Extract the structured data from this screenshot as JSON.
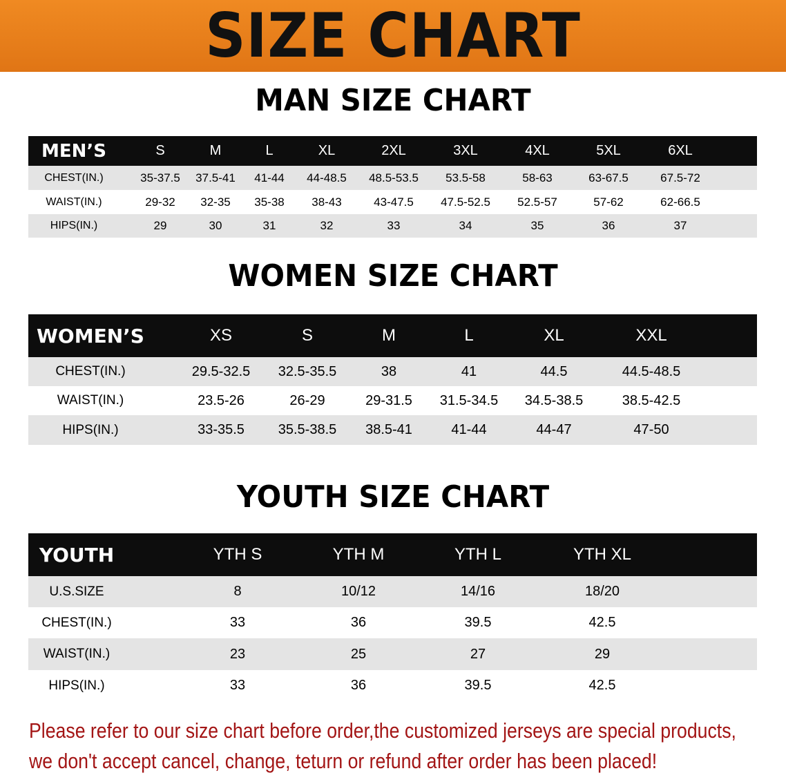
{
  "banner_title": "SIZE CHART",
  "men": {
    "heading": "MAN SIZE CHART",
    "header": [
      "MEN’S",
      "S",
      "M",
      "L",
      "XL",
      "2XL",
      "3XL",
      "4XL",
      "5XL",
      "6XL"
    ],
    "rows": [
      [
        "CHEST(IN.)",
        "35-37.5",
        "37.5-41",
        "41-44",
        "44-48.5",
        "48.5-53.5",
        "53.5-58",
        "58-63",
        "63-67.5",
        "67.5-72"
      ],
      [
        "WAIST(IN.)",
        "29-32",
        "32-35",
        "35-38",
        "38-43",
        "43-47.5",
        "47.5-52.5",
        "52.5-57",
        "57-62",
        "62-66.5"
      ],
      [
        "HIPS(IN.)",
        "29",
        "30",
        "31",
        "32",
        "33",
        "34",
        "35",
        "36",
        "37"
      ]
    ]
  },
  "women": {
    "heading": "WOMEN SIZE CHART",
    "header": [
      "WOMEN’S",
      "XS",
      "S",
      "M",
      "L",
      "XL",
      "XXL"
    ],
    "rows": [
      [
        "CHEST(IN.)",
        "29.5-32.5",
        "32.5-35.5",
        "38",
        "41",
        "44.5",
        "44.5-48.5"
      ],
      [
        "WAIST(IN.)",
        "23.5-26",
        "26-29",
        "29-31.5",
        "31.5-34.5",
        "34.5-38.5",
        "38.5-42.5"
      ],
      [
        "HIPS(IN.)",
        "33-35.5",
        "35.5-38.5",
        "38.5-41",
        "41-44",
        "44-47",
        "47-50"
      ]
    ]
  },
  "youth": {
    "heading": "YOUTH SIZE CHART",
    "header": [
      "YOUTH",
      "YTH S",
      "YTH M",
      "YTH L",
      "YTH XL"
    ],
    "rows": [
      [
        "U.S.SIZE",
        "8",
        "10/12",
        "14/16",
        "18/20"
      ],
      [
        "CHEST(IN.)",
        "33",
        "36",
        "39.5",
        "42.5"
      ],
      [
        "WAIST(IN.)",
        "23",
        "25",
        "27",
        "29"
      ],
      [
        "HIPS(IN.)",
        "33",
        "36",
        "39.5",
        "42.5"
      ]
    ]
  },
  "notice": [
    "Please refer to our size chart before order,the customized jerseys are special products,",
    "we don't accept cancel, change, teturn or refund after order has been placed!"
  ]
}
